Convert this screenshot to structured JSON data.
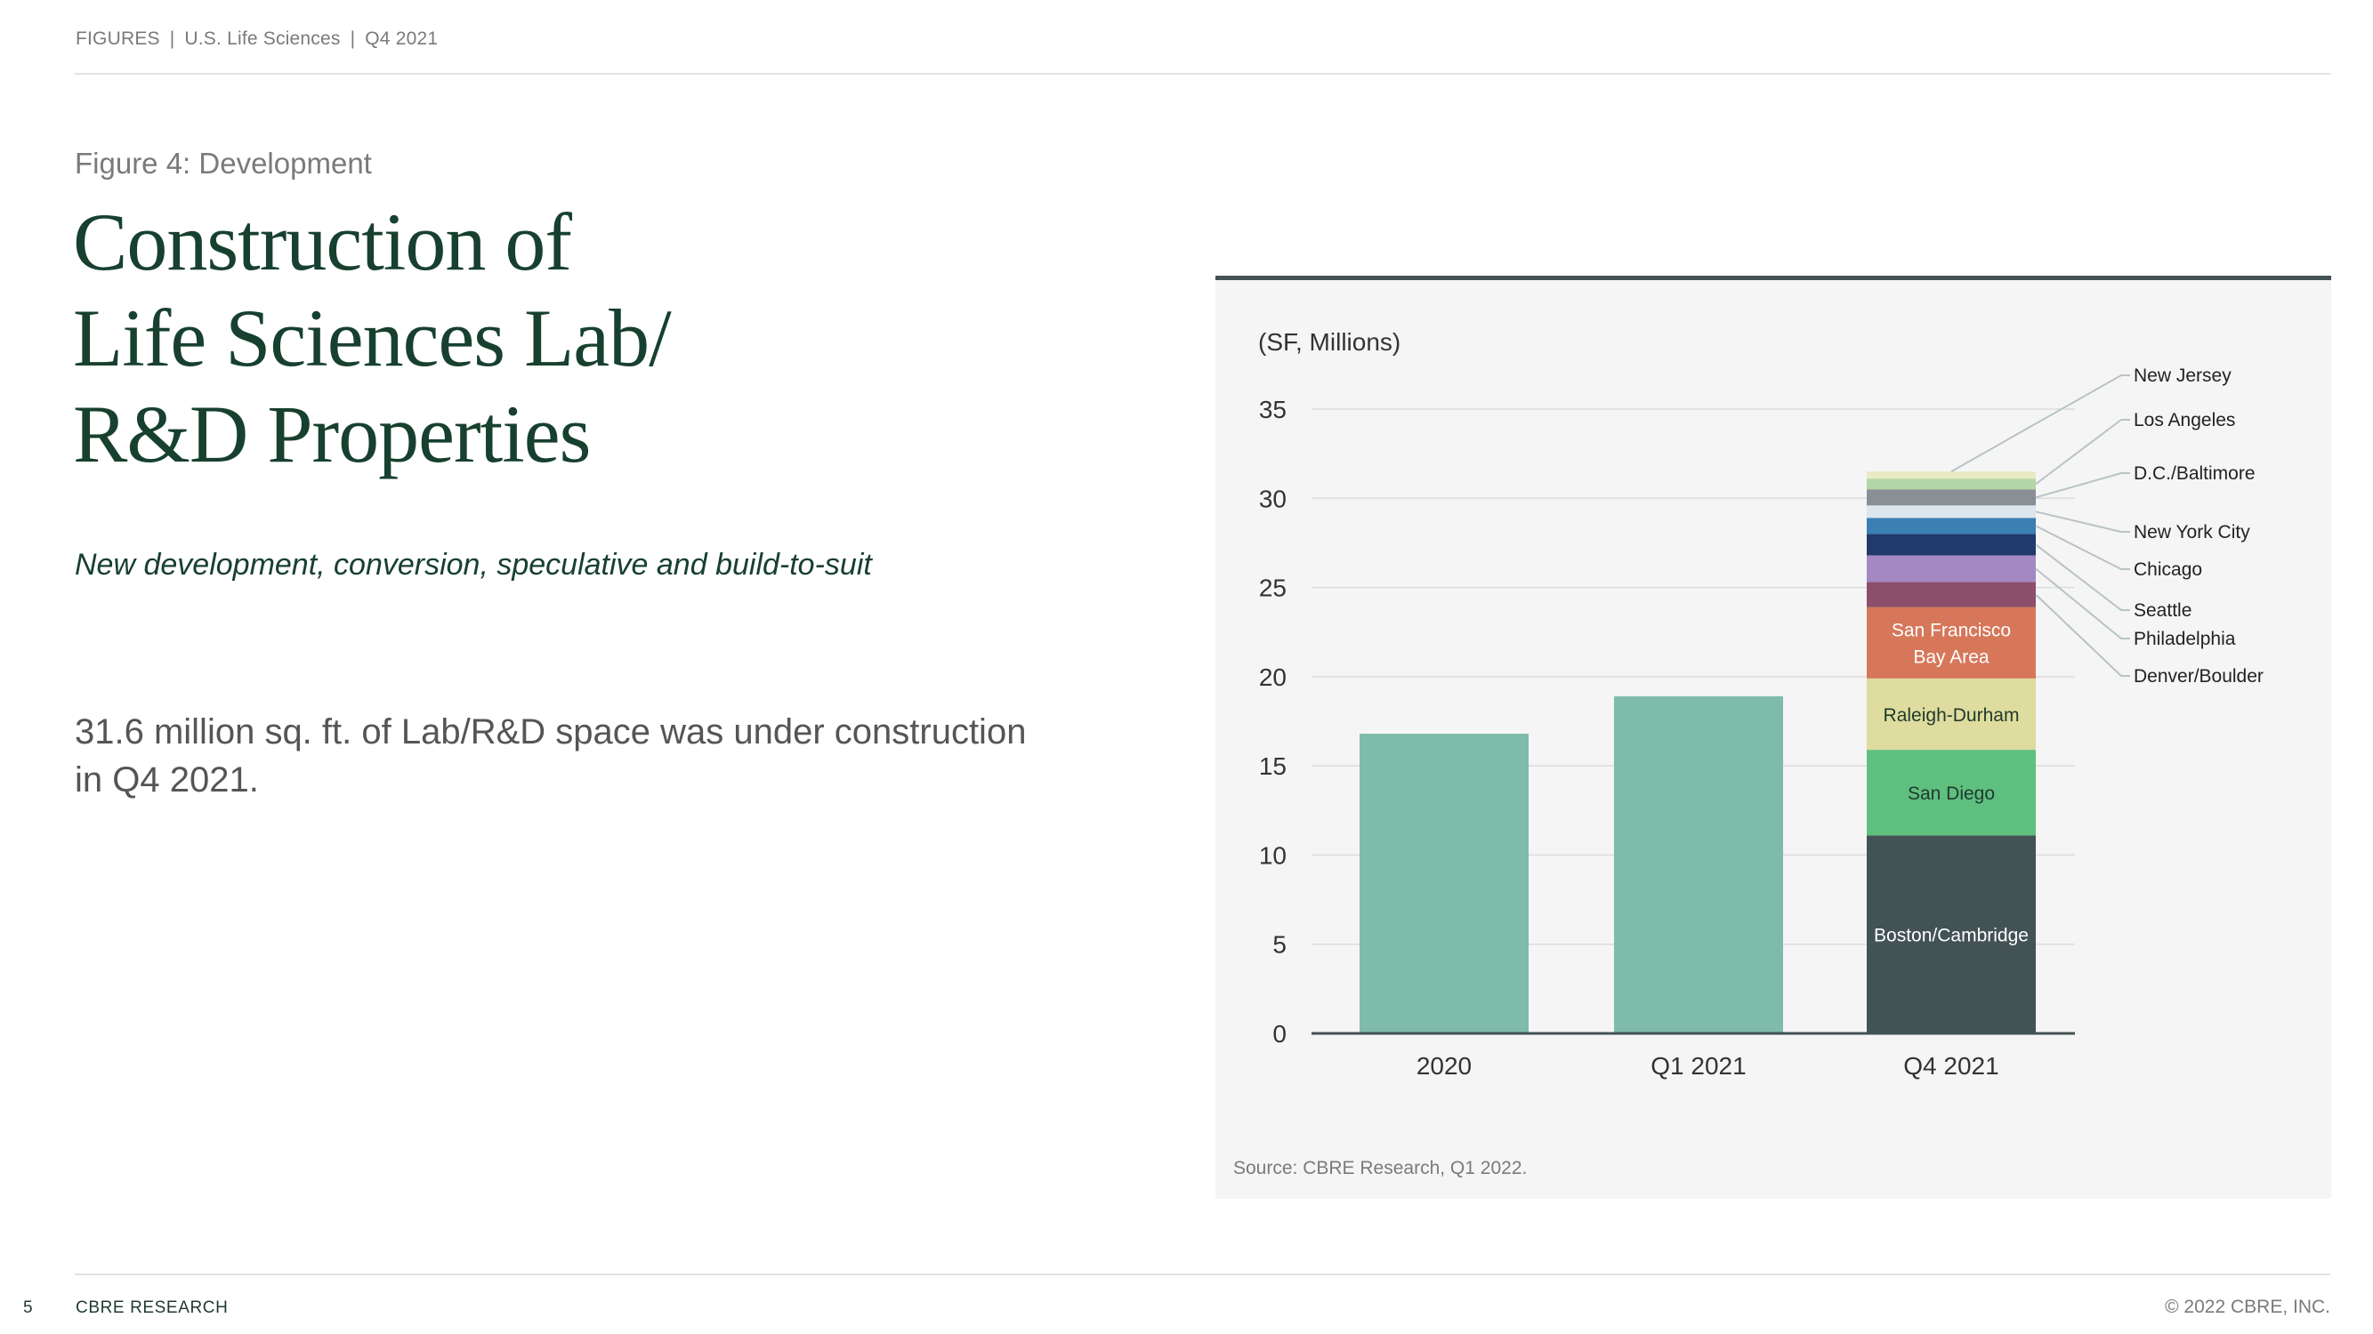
{
  "header": {
    "breadcrumb": [
      "FIGURES",
      "U.S. Life Sciences",
      "Q4 2021"
    ],
    "separator": "|"
  },
  "figure_label": "Figure 4: Development",
  "title_lines": [
    "Construction of",
    "Life Sciences Lab/",
    "R&D Properties"
  ],
  "subtitle": "New development, conversion, speculative and build-to-suit",
  "body_text": "31.6 million sq. ft. of Lab/R&D space was under construction in Q4 2021.",
  "source": "Source: CBRE Research, Q1 2022.",
  "footer": {
    "page_number": "5",
    "brand": "CBRE RESEARCH",
    "copyright": "© 2022 CBRE, INC."
  },
  "colors": {
    "title": "#17402f",
    "bar_total": "#7fbbab",
    "axis": "#435254"
  },
  "chart_data": {
    "type": "bar",
    "stacked": true,
    "title": "",
    "unit_label": "(SF, Millions)",
    "xlabel": "",
    "ylabel": "",
    "ylim": [
      0,
      35
    ],
    "yticks": [
      0,
      5,
      10,
      15,
      20,
      25,
      30,
      35
    ],
    "grid": true,
    "categories": [
      "2020",
      "Q1 2021",
      "Q4 2021"
    ],
    "totals": [
      {
        "category": "2020",
        "value": 16.8,
        "color": "#7fbbab"
      },
      {
        "category": "Q1 2021",
        "value": 18.9,
        "color": "#7fbbab"
      }
    ],
    "stack_category": "Q4 2021",
    "series": [
      {
        "name": "Boston/Cambridge",
        "value": 11.1,
        "color": "#435254",
        "label_inside": true,
        "label_color": "#ffffff"
      },
      {
        "name": "San Diego",
        "value": 4.8,
        "color": "#5fbf7f",
        "label_inside": true,
        "label_color": "#1f3a2d"
      },
      {
        "name": "Raleigh-Durham",
        "value": 4.0,
        "color": "#dedc9e",
        "label_inside": true,
        "label_color": "#1f3a2d"
      },
      {
        "name": "San Francisco Bay Area",
        "value": 4.0,
        "color": "#d6775a",
        "label_inside": true,
        "label_color": "#ffffff",
        "label_lines": [
          "San Francisco",
          "Bay Area"
        ]
      },
      {
        "name": "Denver/Boulder",
        "value": 1.4,
        "color": "#8b4f6b",
        "label_inside": false
      },
      {
        "name": "Philadelphia",
        "value": 1.5,
        "color": "#a388c2",
        "label_inside": false
      },
      {
        "name": "Seattle",
        "value": 1.2,
        "color": "#1f3a6b",
        "label_inside": false
      },
      {
        "name": "Chicago",
        "value": 0.9,
        "color": "#3b7fb3",
        "label_inside": false
      },
      {
        "name": "New York City",
        "value": 0.7,
        "color": "#dbe6ee",
        "label_inside": false
      },
      {
        "name": "D.C./Baltimore",
        "value": 0.9,
        "color": "#8a8f93",
        "label_inside": false
      },
      {
        "name": "Los Angeles",
        "value": 0.6,
        "color": "#b2d6a5",
        "label_inside": false
      },
      {
        "name": "New Jersey",
        "value": 0.4,
        "color": "#e9eac4",
        "label_inside": false
      }
    ],
    "legend_order": [
      "New Jersey",
      "Los Angeles",
      "D.C./Baltimore",
      "New York City",
      "Chicago",
      "Seattle",
      "Philadelphia",
      "Denver/Boulder"
    ],
    "total_q4_2021": 31.6
  }
}
